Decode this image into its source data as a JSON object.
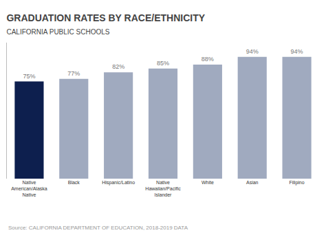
{
  "chart_data": {
    "type": "bar",
    "title": "GRADUATION RATES BY RACE/ETHNICITY",
    "subtitle": "CALIFORNIA PUBLIC SCHOOLS",
    "source": "Source: CALIFORNIA DEPARTMENT OF EDUCATION, 2018-2019 DATA",
    "categories": [
      "Native\nAmerican/Alaska\nNative",
      "Black",
      "Hispanic/Latino",
      "Native\nHawaiian/Pacific\nIslander",
      "White",
      "Asian",
      "Filipino"
    ],
    "values": [
      75,
      77,
      82,
      85,
      88,
      94,
      94
    ],
    "value_labels": [
      "75%",
      "77%",
      "82%",
      "85%",
      "88%",
      "94%",
      "94%"
    ],
    "colors": [
      "#0d1f4e",
      "#a0aabf",
      "#a0aabf",
      "#a0aabf",
      "#a0aabf",
      "#a0aabf",
      "#a0aabf"
    ],
    "ylim": [
      0,
      105
    ],
    "data_labels": true,
    "tick_labels": "x",
    "grid": false
  }
}
